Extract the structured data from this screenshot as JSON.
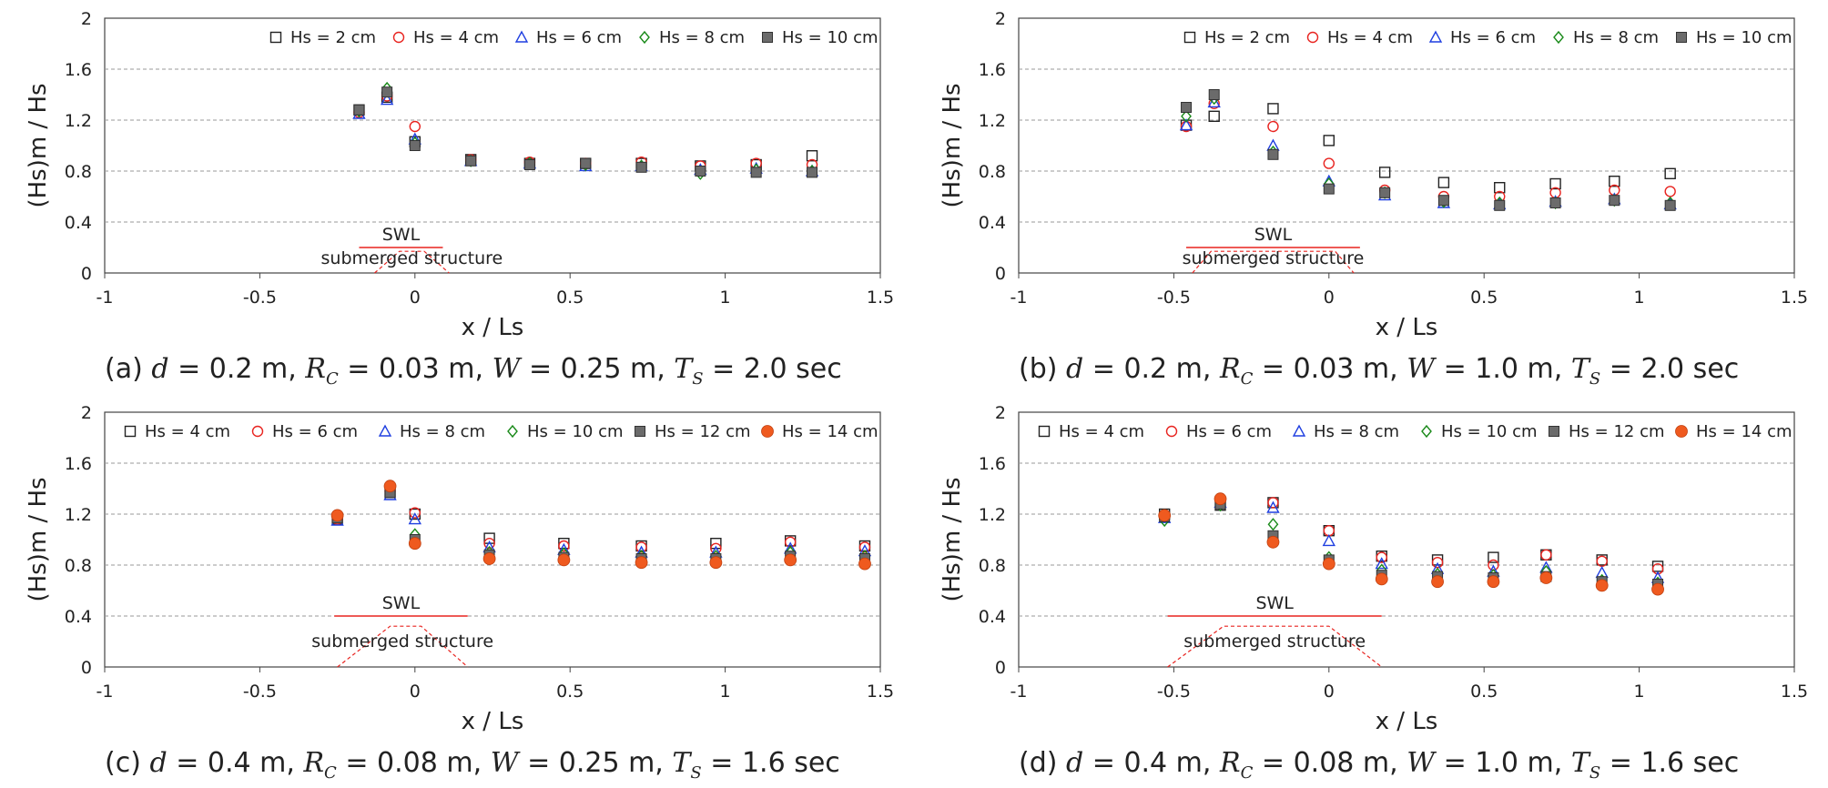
{
  "panels": [
    {
      "id": "a",
      "caption": {
        "prefix": "(a)",
        "d": "0.2 m,",
        "rc": "0.03 m,",
        "w": "0.25 m,",
        "ts": "2.0 sec"
      },
      "structure_label": "submerged structure",
      "swl_label": "SWL",
      "chart_data": {
        "type": "scatter",
        "xlabel": "x / Ls",
        "ylabel": "(Hs)m / Hs",
        "xlim": [
          -1,
          1.5
        ],
        "ylim": [
          0,
          2
        ],
        "xticks": [
          "-1",
          "-0.5",
          "0",
          "0.5",
          "1",
          "1.5"
        ],
        "yticks": [
          "0",
          "0.4",
          "0.8",
          "1.2",
          "1.6",
          "2"
        ],
        "grid": "horizontal dashed",
        "legend": "top-right",
        "swl": {
          "x": [
            -0.18,
            0.09
          ],
          "y": 0.2
        },
        "structure": [
          [
            -0.13,
            0
          ],
          [
            -0.05,
            0.17
          ],
          [
            0.03,
            0.17
          ],
          [
            0.11,
            0
          ]
        ],
        "series": [
          {
            "name": "Hs = 2 cm",
            "marker": "square-open",
            "color": "#222222",
            "x": [
              -0.18,
              -0.09,
              0,
              0.18,
              0.37,
              0.55,
              0.73,
              0.92,
              1.1,
              1.28
            ],
            "y": [
              1.28,
              1.38,
              1.03,
              0.89,
              0.86,
              0.86,
              0.86,
              0.84,
              0.85,
              0.92
            ]
          },
          {
            "name": "Hs = 4 cm",
            "marker": "circle-open",
            "color": "#e8231f",
            "x": [
              -0.18,
              -0.09,
              0,
              0.18,
              0.37,
              0.55,
              0.73,
              0.92,
              1.1,
              1.28
            ],
            "y": [
              1.26,
              1.39,
              1.15,
              0.89,
              0.87,
              0.86,
              0.87,
              0.84,
              0.86,
              0.85
            ]
          },
          {
            "name": "Hs = 6 cm",
            "marker": "triangle-open",
            "color": "#1f3fe0",
            "x": [
              -0.18,
              -0.09,
              0,
              0.18,
              0.37,
              0.55,
              0.73,
              0.92,
              1.1,
              1.28
            ],
            "y": [
              1.25,
              1.36,
              1.05,
              0.88,
              0.86,
              0.84,
              0.84,
              0.81,
              0.82,
              0.8
            ]
          },
          {
            "name": "Hs = 8 cm",
            "marker": "diamond-open",
            "color": "#1a8a1a",
            "x": [
              -0.18,
              -0.09,
              0,
              0.18,
              0.37,
              0.55,
              0.73,
              0.92,
              1.1,
              1.28
            ],
            "y": [
              1.27,
              1.45,
              1.02,
              0.88,
              0.86,
              0.85,
              0.84,
              0.78,
              0.81,
              0.8
            ]
          },
          {
            "name": "Hs = 10 cm",
            "marker": "square-filled",
            "color": "#6b6b6b",
            "x": [
              -0.18,
              -0.09,
              0,
              0.18,
              0.37,
              0.55,
              0.73,
              0.92,
              1.1,
              1.28
            ],
            "y": [
              1.28,
              1.42,
              1.0,
              0.88,
              0.85,
              0.86,
              0.83,
              0.8,
              0.79,
              0.79
            ]
          }
        ]
      }
    },
    {
      "id": "b",
      "caption": {
        "prefix": "(b)",
        "d": "0.2 m,",
        "rc": "0.03 m,",
        "w": "1.0 m,",
        "ts": "2.0 sec"
      },
      "structure_label": "submerged structure",
      "swl_label": "SWL",
      "chart_data": {
        "type": "scatter",
        "xlabel": "x / Ls",
        "ylabel": "(Hs)m / Hs",
        "xlim": [
          -1,
          1.5
        ],
        "ylim": [
          0,
          2
        ],
        "xticks": [
          "-1",
          "-0.5",
          "0",
          "0.5",
          "1",
          "1.5"
        ],
        "yticks": [
          "0",
          "0.4",
          "0.8",
          "1.2",
          "1.6",
          "2"
        ],
        "grid": "horizontal dashed",
        "legend": "top-right",
        "swl": {
          "x": [
            -0.46,
            0.1
          ],
          "y": 0.2
        },
        "structure": [
          [
            -0.44,
            0
          ],
          [
            -0.38,
            0.17
          ],
          [
            0.02,
            0.17
          ],
          [
            0.08,
            0
          ]
        ],
        "series": [
          {
            "name": "Hs = 2 cm",
            "marker": "square-open",
            "color": "#222222",
            "x": [
              -0.46,
              -0.37,
              -0.18,
              0,
              0.18,
              0.37,
              0.55,
              0.73,
              0.92,
              1.1
            ],
            "y": [
              1.16,
              1.23,
              1.29,
              1.04,
              0.79,
              0.71,
              0.67,
              0.7,
              0.72,
              0.78
            ]
          },
          {
            "name": "Hs = 4 cm",
            "marker": "circle-open",
            "color": "#e8231f",
            "x": [
              -0.46,
              -0.37,
              -0.18,
              0,
              0.18,
              0.37,
              0.55,
              0.73,
              0.92,
              1.1
            ],
            "y": [
              1.15,
              1.33,
              1.15,
              0.86,
              0.65,
              0.6,
              0.6,
              0.63,
              0.65,
              0.64
            ]
          },
          {
            "name": "Hs = 6 cm",
            "marker": "triangle-open",
            "color": "#1f3fe0",
            "x": [
              -0.46,
              -0.37,
              -0.18,
              0,
              0.18,
              0.37,
              0.55,
              0.73,
              0.92,
              1.1
            ],
            "y": [
              1.16,
              1.34,
              1.0,
              0.72,
              0.61,
              0.55,
              0.54,
              0.56,
              0.58,
              0.54
            ]
          },
          {
            "name": "Hs = 8 cm",
            "marker": "diamond-open",
            "color": "#1a8a1a",
            "x": [
              -0.46,
              -0.37,
              -0.18,
              0,
              0.18,
              0.37,
              0.55,
              0.73,
              0.92,
              1.1
            ],
            "y": [
              1.23,
              1.37,
              0.95,
              0.7,
              0.63,
              0.56,
              0.55,
              0.55,
              0.57,
              0.55
            ]
          },
          {
            "name": "Hs = 10 cm",
            "marker": "square-filled",
            "color": "#6b6b6b",
            "x": [
              -0.46,
              -0.37,
              -0.18,
              0,
              0.18,
              0.37,
              0.55,
              0.73,
              0.92,
              1.1
            ],
            "y": [
              1.3,
              1.4,
              0.93,
              0.66,
              0.63,
              0.57,
              0.53,
              0.55,
              0.57,
              0.53
            ]
          }
        ]
      }
    },
    {
      "id": "c",
      "caption": {
        "prefix": "(c)",
        "d": "0.4 m,",
        "rc": "0.08 m,",
        "w": "0.25 m,",
        "ts": "1.6 sec"
      },
      "structure_label": "submerged structure",
      "swl_label": "SWL",
      "chart_data": {
        "type": "scatter",
        "xlabel": "x / Ls",
        "ylabel": "(Hs)m / Hs",
        "xlim": [
          -1,
          1.5
        ],
        "ylim": [
          0,
          2
        ],
        "xticks": [
          "-1",
          "-0.5",
          "0",
          "0.5",
          "1",
          "1.5"
        ],
        "yticks": [
          "0",
          "0.4",
          "0.8",
          "1.2",
          "1.6",
          "2"
        ],
        "grid": "horizontal dashed",
        "legend": "top",
        "swl": {
          "x": [
            -0.26,
            0.17
          ],
          "y": 0.4
        },
        "structure": [
          [
            -0.25,
            0
          ],
          [
            -0.08,
            0.32
          ],
          [
            0.02,
            0.32
          ],
          [
            0.17,
            0
          ]
        ],
        "series": [
          {
            "name": "Hs = 4 cm",
            "marker": "square-open",
            "color": "#222222",
            "x": [
              -0.25,
              -0.08,
              0,
              0.24,
              0.48,
              0.73,
              0.97,
              1.21,
              1.45
            ],
            "y": [
              1.16,
              1.37,
              1.2,
              1.01,
              0.97,
              0.95,
              0.97,
              0.99,
              0.95
            ]
          },
          {
            "name": "Hs = 6 cm",
            "marker": "circle-open",
            "color": "#e8231f",
            "x": [
              -0.25,
              -0.08,
              0,
              0.24,
              0.48,
              0.73,
              0.97,
              1.21,
              1.45
            ],
            "y": [
              1.16,
              1.38,
              1.21,
              0.97,
              0.95,
              0.94,
              0.93,
              0.98,
              0.94
            ]
          },
          {
            "name": "Hs = 8 cm",
            "marker": "triangle-open",
            "color": "#1f3fe0",
            "x": [
              -0.25,
              -0.08,
              0,
              0.24,
              0.48,
              0.73,
              0.97,
              1.21,
              1.45
            ],
            "y": [
              1.15,
              1.35,
              1.16,
              0.94,
              0.92,
              0.9,
              0.9,
              0.93,
              0.91
            ]
          },
          {
            "name": "Hs = 10 cm",
            "marker": "diamond-open",
            "color": "#1a8a1a",
            "x": [
              -0.25,
              -0.08,
              0,
              0.24,
              0.48,
              0.73,
              0.97,
              1.21,
              1.45
            ],
            "y": [
              1.18,
              1.38,
              1.04,
              0.9,
              0.89,
              0.87,
              0.87,
              0.9,
              0.87
            ]
          },
          {
            "name": "Hs = 12 cm",
            "marker": "square-filled",
            "color": "#6b6b6b",
            "x": [
              -0.25,
              -0.08,
              0,
              0.24,
              0.48,
              0.73,
              0.97,
              1.21,
              1.45
            ],
            "y": [
              1.17,
              1.37,
              1.0,
              0.88,
              0.86,
              0.85,
              0.85,
              0.87,
              0.85
            ]
          },
          {
            "name": "Hs = 14 cm",
            "marker": "circle-filled",
            "color": "#ef5a1f",
            "x": [
              -0.25,
              -0.08,
              0,
              0.24,
              0.48,
              0.73,
              0.97,
              1.21,
              1.45
            ],
            "y": [
              1.19,
              1.42,
              0.97,
              0.85,
              0.84,
              0.82,
              0.82,
              0.84,
              0.81
            ]
          }
        ]
      }
    },
    {
      "id": "d",
      "caption": {
        "prefix": "(d)",
        "d": "0.4 m,",
        "rc": "0.08 m,",
        "w": "1.0 m,",
        "ts": "1.6 sec"
      },
      "structure_label": "submerged structure",
      "swl_label": "SWL",
      "chart_data": {
        "type": "scatter",
        "xlabel": "x / Ls",
        "ylabel": "(Hs)m / Hs",
        "xlim": [
          -1,
          1.5
        ],
        "ylim": [
          0,
          2
        ],
        "xticks": [
          "-1",
          "-0.5",
          "0",
          "0.5",
          "1",
          "1.5"
        ],
        "yticks": [
          "0",
          "0.4",
          "0.8",
          "1.2",
          "1.6",
          "2"
        ],
        "grid": "horizontal dashed",
        "legend": "top",
        "swl": {
          "x": [
            -0.52,
            0.17
          ],
          "y": 0.4
        },
        "structure": [
          [
            -0.52,
            0
          ],
          [
            -0.34,
            0.32
          ],
          [
            0.0,
            0.32
          ],
          [
            0.17,
            0
          ]
        ],
        "series": [
          {
            "name": "Hs = 4 cm",
            "marker": "square-open",
            "color": "#222222",
            "x": [
              -0.53,
              -0.35,
              -0.18,
              0,
              0.17,
              0.35,
              0.53,
              0.7,
              0.88,
              1.06
            ],
            "y": [
              1.2,
              1.27,
              1.29,
              1.07,
              0.87,
              0.84,
              0.86,
              0.88,
              0.84,
              0.79
            ]
          },
          {
            "name": "Hs = 6 cm",
            "marker": "circle-open",
            "color": "#e8231f",
            "x": [
              -0.53,
              -0.35,
              -0.18,
              0,
              0.17,
              0.35,
              0.53,
              0.7,
              0.88,
              1.06
            ],
            "y": [
              1.19,
              1.3,
              1.29,
              1.07,
              0.86,
              0.82,
              0.8,
              0.88,
              0.83,
              0.77
            ]
          },
          {
            "name": "Hs = 8 cm",
            "marker": "triangle-open",
            "color": "#1f3fe0",
            "x": [
              -0.53,
              -0.35,
              -0.18,
              0,
              0.17,
              0.35,
              0.53,
              0.7,
              0.88,
              1.06
            ],
            "y": [
              1.17,
              1.29,
              1.25,
              0.99,
              0.81,
              0.77,
              0.75,
              0.78,
              0.74,
              0.7
            ]
          },
          {
            "name": "Hs = 10 cm",
            "marker": "diamond-open",
            "color": "#1a8a1a",
            "x": [
              -0.53,
              -0.35,
              -0.18,
              0,
              0.17,
              0.35,
              0.53,
              0.7,
              0.88,
              1.06
            ],
            "y": [
              1.15,
              1.27,
              1.12,
              0.86,
              0.76,
              0.73,
              0.72,
              0.75,
              0.68,
              0.66
            ]
          },
          {
            "name": "Hs = 12 cm",
            "marker": "square-filled",
            "color": "#6b6b6b",
            "x": [
              -0.53,
              -0.35,
              -0.18,
              0,
              0.17,
              0.35,
              0.53,
              0.7,
              0.88,
              1.06
            ],
            "y": [
              1.18,
              1.28,
              1.03,
              0.84,
              0.72,
              0.71,
              0.7,
              0.71,
              0.67,
              0.65
            ]
          },
          {
            "name": "Hs = 14 cm",
            "marker": "circle-filled",
            "color": "#ef5a1f",
            "x": [
              -0.53,
              -0.35,
              -0.18,
              0,
              0.17,
              0.35,
              0.53,
              0.7,
              0.88,
              1.06
            ],
            "y": [
              1.19,
              1.32,
              0.98,
              0.81,
              0.69,
              0.67,
              0.67,
              0.7,
              0.64,
              0.61
            ]
          }
        ]
      }
    }
  ]
}
